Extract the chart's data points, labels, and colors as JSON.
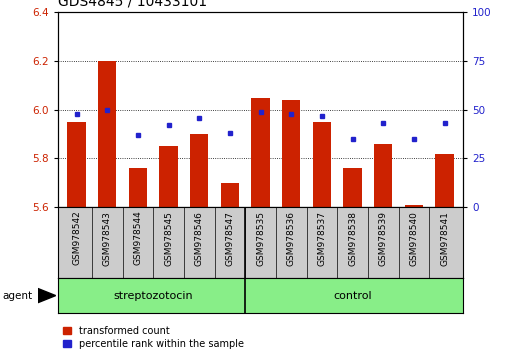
{
  "title": "GDS4845 / 10433101",
  "samples": [
    "GSM978542",
    "GSM978543",
    "GSM978544",
    "GSM978545",
    "GSM978546",
    "GSM978547",
    "GSM978535",
    "GSM978536",
    "GSM978537",
    "GSM978538",
    "GSM978539",
    "GSM978540",
    "GSM978541"
  ],
  "red_values": [
    5.95,
    6.2,
    5.76,
    5.85,
    5.9,
    5.7,
    6.05,
    6.04,
    5.95,
    5.76,
    5.86,
    5.61,
    5.82
  ],
  "blue_percentile": [
    48,
    50,
    37,
    42,
    46,
    38,
    49,
    48,
    47,
    35,
    43,
    35,
    43
  ],
  "ylim": [
    5.6,
    6.4
  ],
  "yticks_left": [
    5.6,
    5.8,
    6.0,
    6.2,
    6.4
  ],
  "yticks_right": [
    0,
    25,
    50,
    75,
    100
  ],
  "bar_bottom": 5.6,
  "bar_color": "#cc2200",
  "dot_color": "#2222cc",
  "group1_label": "streptozotocin",
  "group2_label": "control",
  "group1_count": 6,
  "group2_count": 7,
  "legend_red": "transformed count",
  "legend_blue": "percentile rank within the sample",
  "agent_label": "agent",
  "tick_color_left": "#cc2200",
  "tick_color_right": "#2222cc",
  "bg_plot": "#ffffff",
  "bg_tick_area": "#cccccc",
  "bg_group": "#88ee88",
  "title_fontsize": 10,
  "axis_fontsize": 7.5,
  "label_fontsize": 6.5
}
